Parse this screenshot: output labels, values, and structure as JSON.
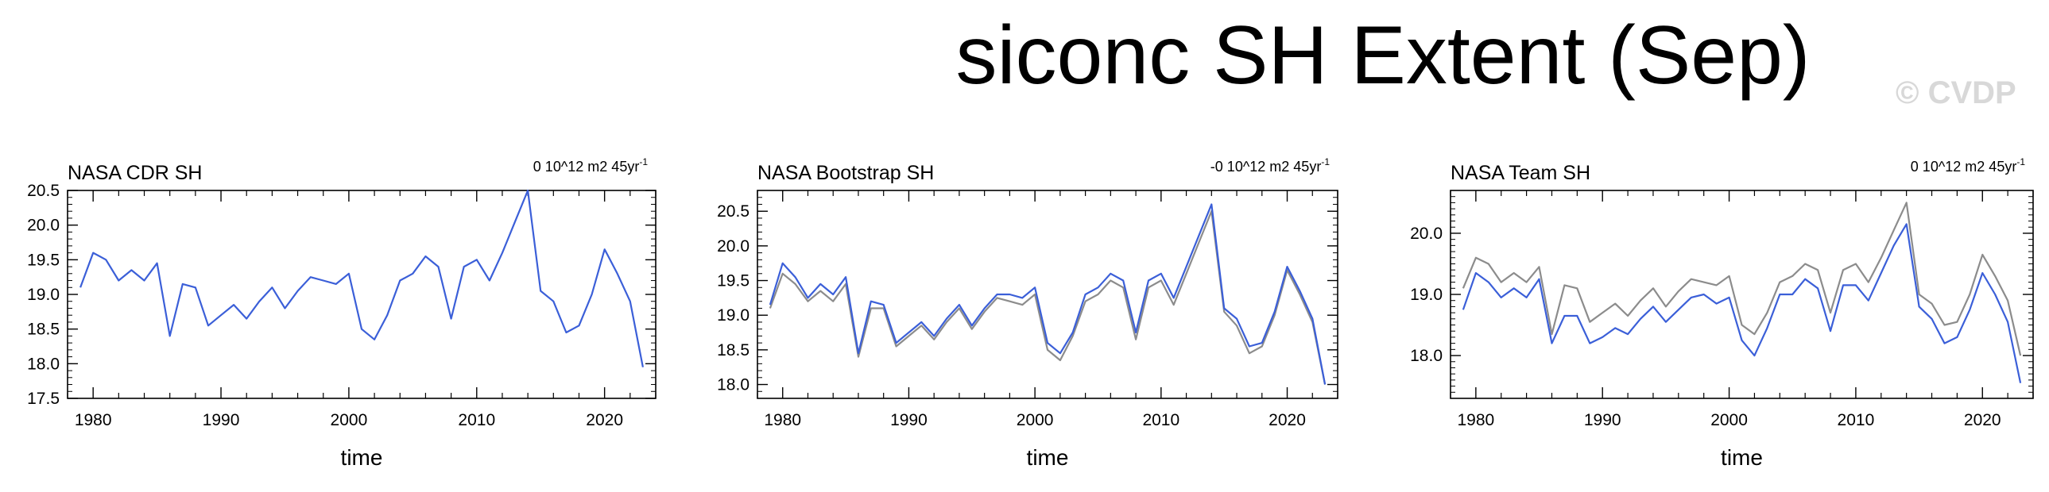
{
  "title": "siconc SH Extent (Sep)",
  "watermark": "© CVDP",
  "colors": {
    "blue": "#3b5fd8",
    "gray": "#8c8c8c",
    "axis": "#000000"
  },
  "chart_data": [
    {
      "type": "line",
      "title": "NASA CDR SH",
      "trend_label": "0 10^12 m2 45yr",
      "trend_exp": "-1",
      "xlabel": "time",
      "ylabel": "",
      "xlim": [
        1978,
        2024
      ],
      "ylim": [
        17.5,
        20.5
      ],
      "yticks": [
        17.5,
        18.0,
        18.5,
        19.0,
        19.5,
        20.0,
        20.5
      ],
      "ytick_labels": [
        "17.5",
        "18.0",
        "18.5",
        "19.0",
        "19.5",
        "20.0",
        "20.5"
      ],
      "xticks": [
        1980,
        1990,
        2000,
        2010,
        2020
      ],
      "xtick_labels": [
        "1980",
        "1990",
        "2000",
        "2010",
        "2020"
      ],
      "grid": false,
      "x": [
        1979,
        1980,
        1981,
        1982,
        1983,
        1984,
        1985,
        1986,
        1987,
        1988,
        1989,
        1990,
        1991,
        1992,
        1993,
        1994,
        1995,
        1996,
        1997,
        1998,
        1999,
        2000,
        2001,
        2002,
        2003,
        2004,
        2005,
        2006,
        2007,
        2008,
        2009,
        2010,
        2011,
        2012,
        2013,
        2014,
        2015,
        2016,
        2017,
        2018,
        2019,
        2020,
        2021,
        2022,
        2023
      ],
      "series": [
        {
          "color": "#3b5fd8",
          "values": [
            19.1,
            19.6,
            19.5,
            19.2,
            19.35,
            19.2,
            19.45,
            18.4,
            19.15,
            19.1,
            18.55,
            18.7,
            18.85,
            18.65,
            18.9,
            19.1,
            18.8,
            19.05,
            19.25,
            19.2,
            19.15,
            19.3,
            18.5,
            18.35,
            18.7,
            19.2,
            19.3,
            19.55,
            19.4,
            18.65,
            19.4,
            19.5,
            19.2,
            19.6,
            20.05,
            20.5,
            19.05,
            18.9,
            18.45,
            18.55,
            19.0,
            19.65,
            19.3,
            18.9,
            17.95
          ]
        }
      ]
    },
    {
      "type": "line",
      "title": "NASA Bootstrap SH",
      "trend_label": "-0 10^12 m2 45yr",
      "trend_exp": "-1",
      "xlabel": "time",
      "ylabel": "",
      "xlim": [
        1978,
        2024
      ],
      "ylim": [
        17.8,
        20.8
      ],
      "yticks": [
        18.0,
        18.5,
        19.0,
        19.5,
        20.0,
        20.5
      ],
      "ytick_labels": [
        "18.0",
        "18.5",
        "19.0",
        "19.5",
        "20.0",
        "20.5"
      ],
      "xticks": [
        1980,
        1990,
        2000,
        2010,
        2020
      ],
      "xtick_labels": [
        "1980",
        "1990",
        "2000",
        "2010",
        "2020"
      ],
      "grid": false,
      "x": [
        1979,
        1980,
        1981,
        1982,
        1983,
        1984,
        1985,
        1986,
        1987,
        1988,
        1989,
        1990,
        1991,
        1992,
        1993,
        1994,
        1995,
        1996,
        1997,
        1998,
        1999,
        2000,
        2001,
        2002,
        2003,
        2004,
        2005,
        2006,
        2007,
        2008,
        2009,
        2010,
        2011,
        2012,
        2013,
        2014,
        2015,
        2016,
        2017,
        2018,
        2019,
        2020,
        2021,
        2022,
        2023
      ],
      "series": [
        {
          "color": "#8c8c8c",
          "values": [
            19.1,
            19.6,
            19.45,
            19.2,
            19.35,
            19.2,
            19.45,
            18.4,
            19.1,
            19.1,
            18.55,
            18.7,
            18.85,
            18.65,
            18.9,
            19.1,
            18.8,
            19.05,
            19.25,
            19.2,
            19.15,
            19.3,
            18.5,
            18.35,
            18.7,
            19.2,
            19.3,
            19.5,
            19.4,
            18.65,
            19.4,
            19.5,
            19.15,
            19.6,
            20.05,
            20.5,
            19.05,
            18.85,
            18.45,
            18.55,
            19.0,
            19.65,
            19.3,
            18.9,
            18.0
          ]
        },
        {
          "color": "#3b5fd8",
          "values": [
            19.15,
            19.75,
            19.55,
            19.25,
            19.45,
            19.3,
            19.55,
            18.45,
            19.2,
            19.15,
            18.6,
            18.75,
            18.9,
            18.7,
            18.95,
            19.15,
            18.85,
            19.1,
            19.3,
            19.3,
            19.25,
            19.4,
            18.6,
            18.45,
            18.75,
            19.3,
            19.4,
            19.6,
            19.5,
            18.75,
            19.5,
            19.6,
            19.25,
            19.7,
            20.15,
            20.6,
            19.1,
            18.95,
            18.55,
            18.6,
            19.05,
            19.7,
            19.35,
            18.95,
            18.0
          ]
        }
      ]
    },
    {
      "type": "line",
      "title": "NASA Team SH",
      "trend_label": "0 10^12 m2 45yr",
      "trend_exp": "-1",
      "xlabel": "time",
      "ylabel": "",
      "xlim": [
        1978,
        2024
      ],
      "ylim": [
        17.3,
        20.7
      ],
      "yticks": [
        18.0,
        19.0,
        20.0
      ],
      "ytick_labels": [
        "18.0",
        "19.0",
        "20.0"
      ],
      "xticks": [
        1980,
        1990,
        2000,
        2010,
        2020
      ],
      "xtick_labels": [
        "1980",
        "1990",
        "2000",
        "2010",
        "2020"
      ],
      "grid": false,
      "x": [
        1979,
        1980,
        1981,
        1982,
        1983,
        1984,
        1985,
        1986,
        1987,
        1988,
        1989,
        1990,
        1991,
        1992,
        1993,
        1994,
        1995,
        1996,
        1997,
        1998,
        1999,
        2000,
        2001,
        2002,
        2003,
        2004,
        2005,
        2006,
        2007,
        2008,
        2009,
        2010,
        2011,
        2012,
        2013,
        2014,
        2015,
        2016,
        2017,
        2018,
        2019,
        2020,
        2021,
        2022,
        2023
      ],
      "series": [
        {
          "color": "#8c8c8c",
          "values": [
            19.1,
            19.6,
            19.5,
            19.2,
            19.35,
            19.2,
            19.45,
            18.35,
            19.15,
            19.1,
            18.55,
            18.7,
            18.85,
            18.65,
            18.9,
            19.1,
            18.8,
            19.05,
            19.25,
            19.2,
            19.15,
            19.3,
            18.5,
            18.35,
            18.7,
            19.2,
            19.3,
            19.5,
            19.4,
            18.7,
            19.4,
            19.5,
            19.2,
            19.6,
            20.05,
            20.5,
            19.0,
            18.85,
            18.5,
            18.55,
            19.0,
            19.65,
            19.3,
            18.9,
            18.0
          ]
        },
        {
          "color": "#3b5fd8",
          "values": [
            18.75,
            19.35,
            19.2,
            18.95,
            19.1,
            18.95,
            19.25,
            18.2,
            18.65,
            18.65,
            18.2,
            18.3,
            18.45,
            18.35,
            18.6,
            18.8,
            18.55,
            18.75,
            18.95,
            19.0,
            18.85,
            18.95,
            18.25,
            18.0,
            18.45,
            19.0,
            19.0,
            19.25,
            19.1,
            18.4,
            19.15,
            19.15,
            18.9,
            19.35,
            19.8,
            20.15,
            18.8,
            18.6,
            18.2,
            18.3,
            18.75,
            19.35,
            19.0,
            18.55,
            17.55
          ]
        }
      ]
    }
  ]
}
